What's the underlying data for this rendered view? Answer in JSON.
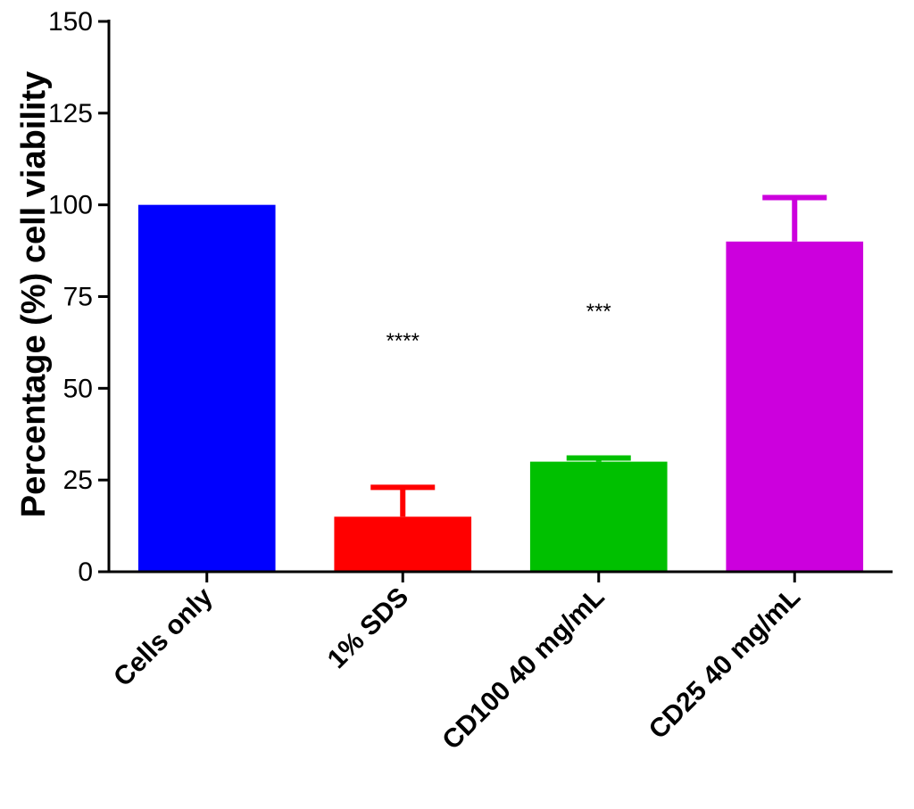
{
  "chart_data": {
    "type": "bar",
    "title": "",
    "xlabel": "",
    "ylabel": "Percentage (%) cell viability",
    "ylim": [
      0,
      150
    ],
    "yticks": [
      0,
      25,
      50,
      75,
      100,
      125,
      150
    ],
    "categories": [
      "Cells only",
      "1% SDS",
      "CD100 40 mg/mL",
      "CD25 40 mg/mL"
    ],
    "values": [
      100,
      15,
      30,
      90
    ],
    "errors": [
      0,
      8,
      1,
      12
    ],
    "significance": [
      "",
      "****",
      "***",
      ""
    ],
    "colors": [
      "#0000FF",
      "#FF0000",
      "#00C000",
      "#CC00DD"
    ],
    "grid": false,
    "legend": "none"
  }
}
